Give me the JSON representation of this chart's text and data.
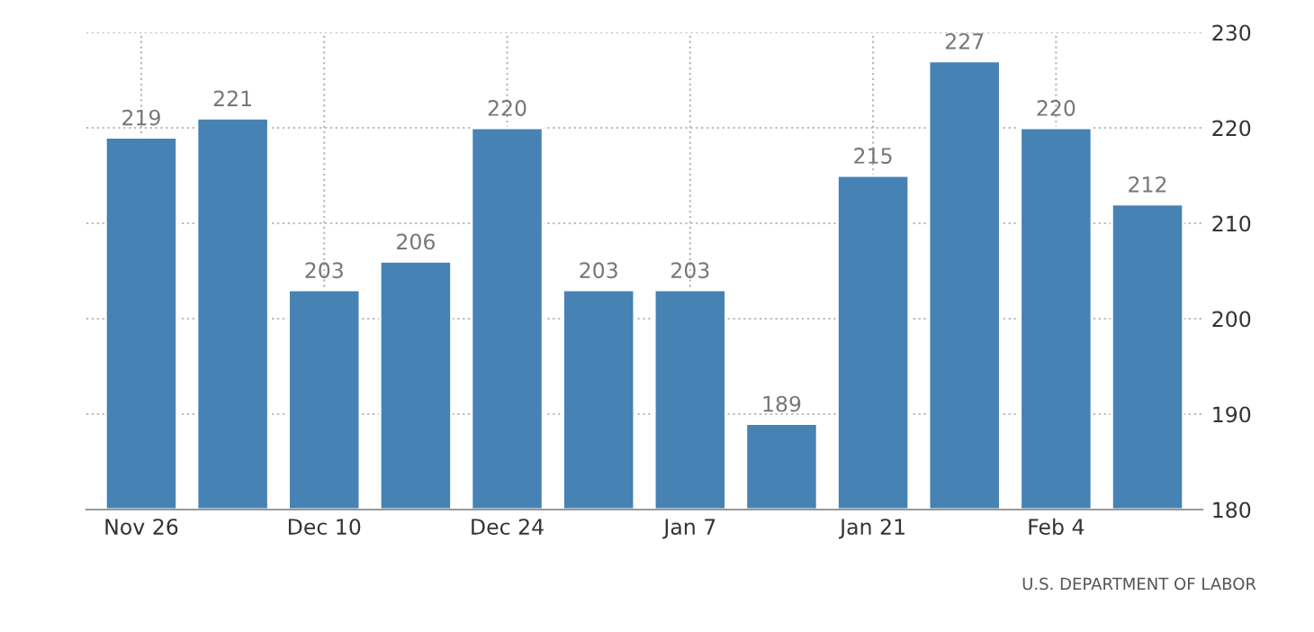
{
  "chart_data": {
    "type": "bar",
    "categories": [
      "Nov 26",
      null,
      "Dec 10",
      null,
      "Dec 24",
      null,
      "Jan 7",
      null,
      "Jan 21",
      null,
      "Feb 4",
      null
    ],
    "values": [
      219,
      221,
      203,
      206,
      220,
      203,
      203,
      189,
      215,
      227,
      220,
      212
    ],
    "color": "#4682b4",
    "ylim": [
      180,
      230
    ],
    "yticks": [
      180,
      190,
      200,
      210,
      220,
      230
    ],
    "grid": true,
    "data_labels": true,
    "annotations": [
      "U.S. DEPARTMENT OF LABOR"
    ]
  }
}
